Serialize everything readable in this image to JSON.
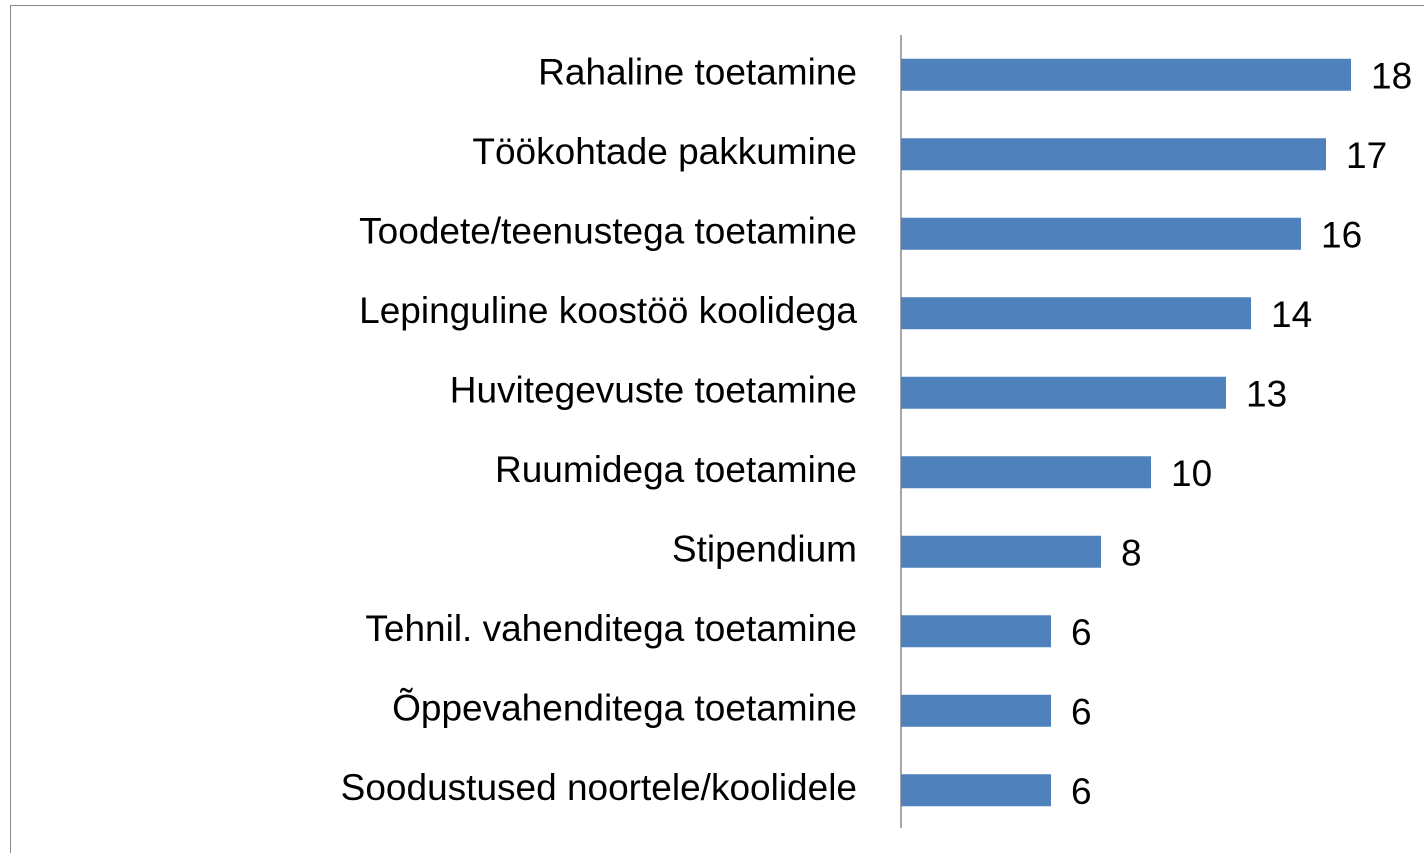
{
  "chart_data": {
    "type": "bar",
    "orientation": "horizontal",
    "categories": [
      "Rahaline toetamine",
      "Töökohtade pakkumine",
      "Toodete/teenustega toetamine",
      "Lepinguline koostöö koolidega",
      "Huvitegevuste toetamine",
      "Ruumidega toetamine",
      "Stipendium",
      "Tehnil. vahenditega toetamine",
      "Õppevahenditega toetamine",
      "Soodustused noortele/koolidele"
    ],
    "values": [
      18,
      17,
      16,
      14,
      13,
      10,
      8,
      6,
      6,
      6
    ],
    "color": "#4f81bd"
  }
}
